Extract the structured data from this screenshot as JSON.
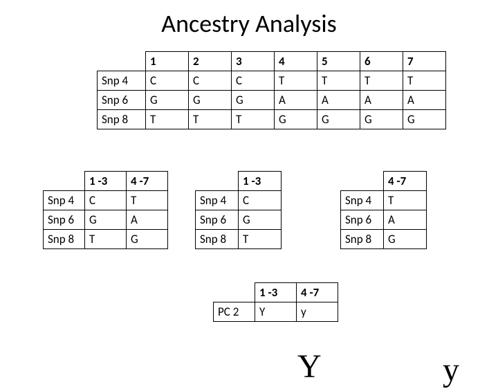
{
  "title": "Ancestry Analysis",
  "main": {
    "cols": [
      "1",
      "2",
      "3",
      "4",
      "5",
      "6",
      "7"
    ],
    "rows": [
      {
        "label": "Snp 4",
        "cells": [
          "C",
          "C",
          "C",
          "T",
          "T",
          "T",
          "T"
        ]
      },
      {
        "label": "Snp 6",
        "cells": [
          "G",
          "G",
          "G",
          "A",
          "A",
          "A",
          "A"
        ]
      },
      {
        "label": "Snp 8",
        "cells": [
          "T",
          "T",
          "T",
          "G",
          "G",
          "G",
          "G"
        ]
      }
    ]
  },
  "left": {
    "cols": [
      "1 -3",
      "4 -7"
    ],
    "rows": [
      {
        "label": "Snp 4",
        "cells": [
          "C",
          "T"
        ]
      },
      {
        "label": "Snp 6",
        "cells": [
          "G",
          "A"
        ]
      },
      {
        "label": "Snp 8",
        "cells": [
          "T",
          "G"
        ]
      }
    ]
  },
  "mid": {
    "cols": [
      "1 -3"
    ],
    "rows": [
      {
        "label": "Snp 4",
        "cells": [
          "C"
        ]
      },
      {
        "label": "Snp 6",
        "cells": [
          "G"
        ]
      },
      {
        "label": "Snp 8",
        "cells": [
          "T"
        ]
      }
    ]
  },
  "right": {
    "cols": [
      "4 -7"
    ],
    "rows": [
      {
        "label": "Snp 4",
        "cells": [
          "T"
        ]
      },
      {
        "label": "Snp 6",
        "cells": [
          "A"
        ]
      },
      {
        "label": "Snp 8",
        "cells": [
          "G"
        ]
      }
    ]
  },
  "bottom": {
    "cols": [
      "1 -3",
      "4 -7"
    ],
    "rows": [
      {
        "label": "PC 2",
        "cells": [
          "Y",
          "y"
        ]
      }
    ]
  },
  "annot": {
    "bigY": "Y",
    "smally": "y"
  },
  "colors": {
    "text": "#000000",
    "bg": "#ffffff",
    "border": "#000000"
  }
}
